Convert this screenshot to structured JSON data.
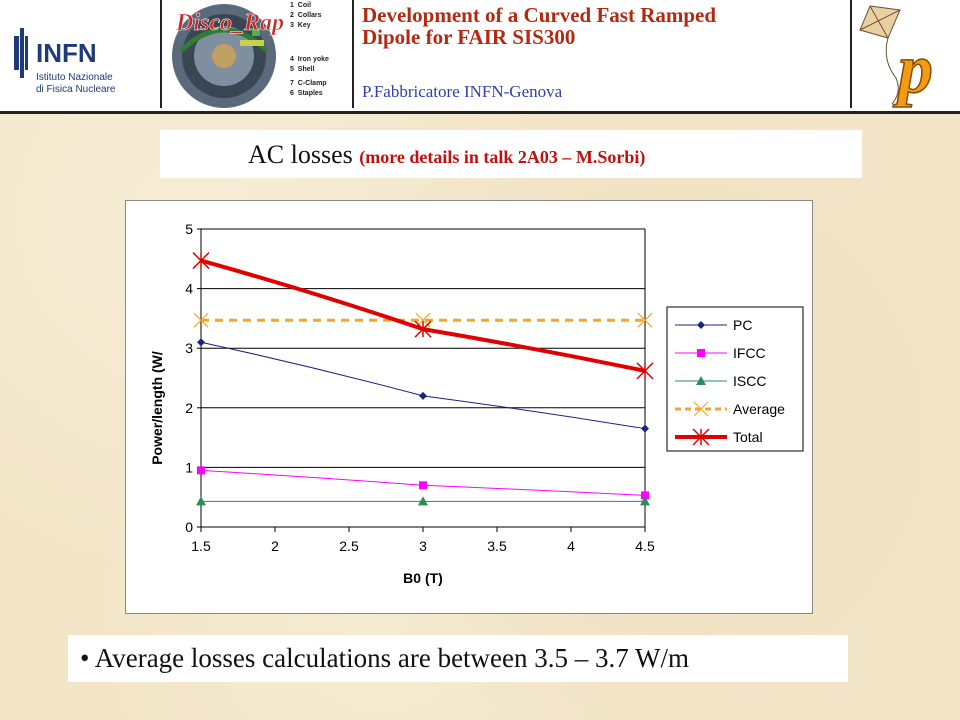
{
  "header": {
    "logo_text": "INFN",
    "logo_sub1": "Istituto Nazionale",
    "logo_sub2": "di Fisica Nucleare",
    "disco_title": "Disco_Rap",
    "disco_legend": [
      {
        "num": "1",
        "label": "Coil"
      },
      {
        "num": "2",
        "label": "Collars"
      },
      {
        "num": "3",
        "label": "Key"
      },
      {
        "num": "4",
        "label": "Iron yoke"
      },
      {
        "num": "5",
        "label": "Shell"
      },
      {
        "num": "7",
        "label": "C-Clamp"
      },
      {
        "num": "6",
        "label": "Staples"
      }
    ],
    "title_line1": "Development of a Curved Fast Ramped",
    "title_line2": "Dipole for FAIR SIS300",
    "author": "P.Fabbricatore INFN-Genova",
    "kite_logo": "p"
  },
  "heading": {
    "main": "AC losses",
    "sub": "(more details in talk 2A03 – M.Sorbi)"
  },
  "chart_data": {
    "type": "line",
    "xlabel": "B0 (T)",
    "ylabel": "Power/length (W/",
    "xlim": [
      1.5,
      4.5
    ],
    "ylim": [
      0,
      5
    ],
    "xticks": [
      "1.5",
      "2",
      "2.5",
      "3",
      "3.5",
      "4",
      "4.5"
    ],
    "yticks": [
      "0",
      "1",
      "2",
      "3",
      "4",
      "5"
    ],
    "grid": "horizontal",
    "legend_position": "right",
    "series": [
      {
        "name": "PC",
        "color": "#1a237e",
        "marker": "diamond",
        "dash": "solid",
        "width": 1,
        "x": [
          1.5,
          3,
          4.5
        ],
        "y": [
          3.1,
          2.2,
          1.65
        ]
      },
      {
        "name": "IFCC",
        "color": "#ff00ff",
        "marker": "square",
        "dash": "solid",
        "width": 1,
        "x": [
          1.5,
          3,
          4.5
        ],
        "y": [
          0.95,
          0.7,
          0.53
        ]
      },
      {
        "name": "ISCC",
        "color": "#2e8b57",
        "marker": "triangle",
        "dash": "solid",
        "width": 1,
        "x": [
          1.5,
          3,
          4.5
        ],
        "y": [
          0.43,
          0.43,
          0.43
        ]
      },
      {
        "name": "Average",
        "color": "#f5a623",
        "marker": "x",
        "dash": "dashed",
        "width": 3,
        "x": [
          1.5,
          3,
          4.5
        ],
        "y": [
          3.47,
          3.47,
          3.47
        ]
      },
      {
        "name": "Total",
        "color": "#e00000",
        "marker": "star",
        "dash": "solid",
        "width": 4,
        "x": [
          1.5,
          3,
          4.5
        ],
        "y": [
          4.47,
          3.32,
          2.62
        ]
      }
    ]
  },
  "bullet": {
    "symbol": "•",
    "text": "Average losses calculations are between 3.5 – 3.7 W/m"
  }
}
